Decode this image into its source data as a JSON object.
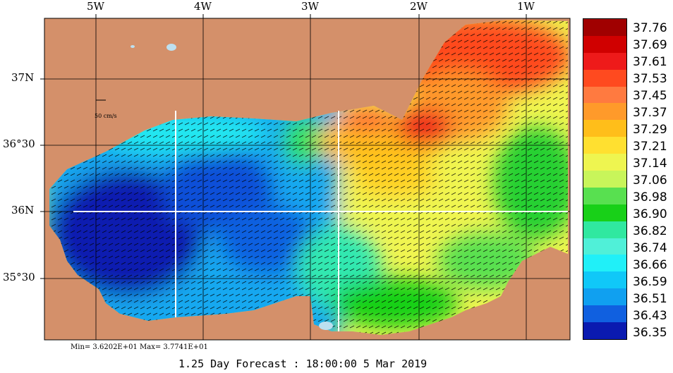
{
  "map": {
    "longitude_labels": [
      "5W",
      "4W",
      "3W",
      "2W",
      "1W"
    ],
    "latitude_labels": [
      "37N",
      "36°30",
      "36N",
      "35°30"
    ],
    "velocity_scale_label": "50 cm/s",
    "min_max_text": "Min= 3.6202E+01  Max= 3.7741E+01",
    "forecast_text": "1.25 Day Forecast : 18:00:00   5 Mar 2019",
    "colors": {
      "land": "#d4906a",
      "vectors": "#000000",
      "section_lines": "#ffffff"
    }
  },
  "colorbar": {
    "labels": [
      "37.76",
      "37.69",
      "37.61",
      "37.53",
      "37.45",
      "37.37",
      "37.29",
      "37.21",
      "37.14",
      "37.06",
      "36.98",
      "36.90",
      "36.82",
      "36.74",
      "36.66",
      "36.59",
      "36.51",
      "36.43",
      "36.35"
    ],
    "colors": [
      "#a00000",
      "#d00000",
      "#ee1a1a",
      "#ff4a1f",
      "#ff7a40",
      "#ff9a2a",
      "#ffbe1a",
      "#ffe030",
      "#eef550",
      "#c8f55a",
      "#58e050",
      "#18d018",
      "#30e8a0",
      "#50f0d8",
      "#20f0f8",
      "#10c8f8",
      "#10a0f0",
      "#1060e0",
      "#0a1ab0"
    ]
  }
}
